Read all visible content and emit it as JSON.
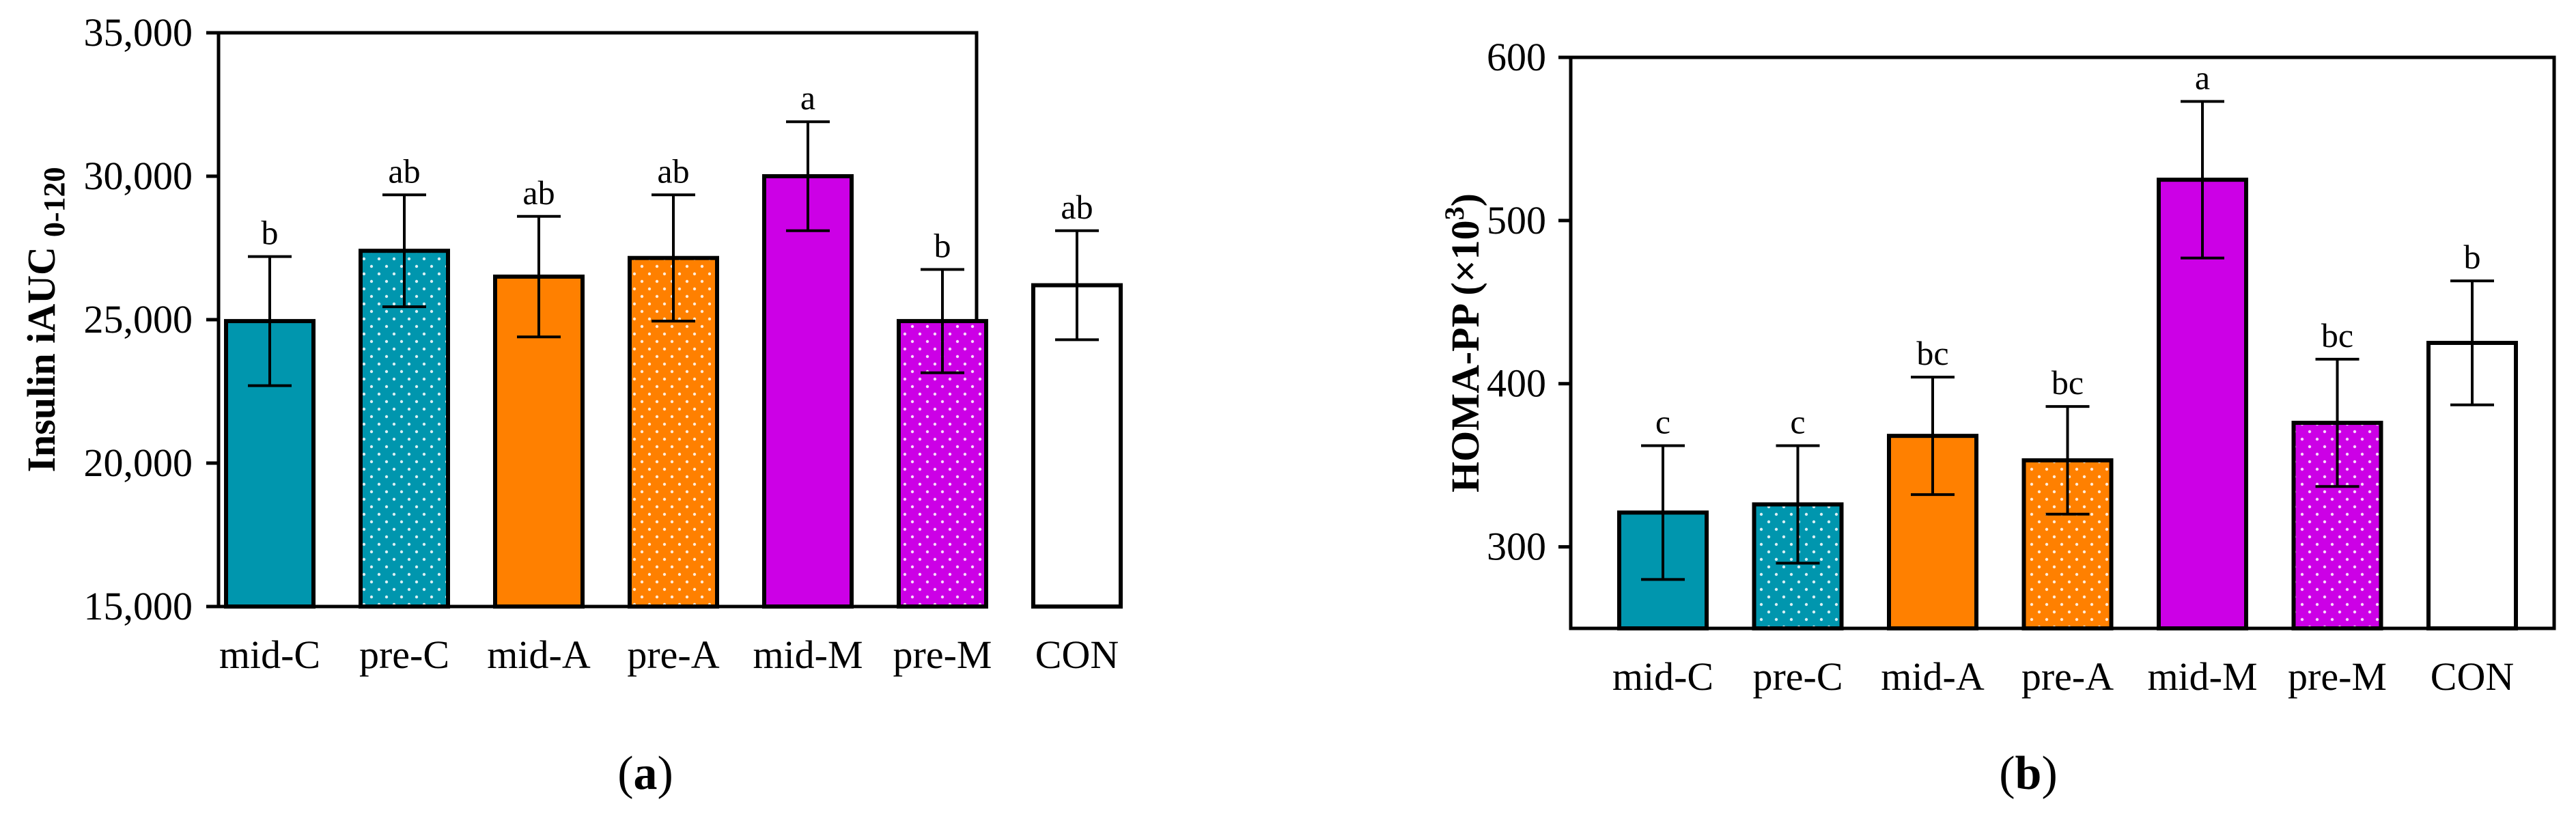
{
  "chart_data": [
    {
      "type": "bar",
      "panel_label": "a",
      "title": "",
      "xlabel": "",
      "ylabel_main": "Insulin iAUC",
      "ylabel_sub": "0-120",
      "ylim": [
        15000,
        35000
      ],
      "yticks": [
        15000,
        20000,
        25000,
        30000,
        35000
      ],
      "ytick_labels": [
        "15,000",
        "20,000",
        "25,000",
        "30,000",
        "35,000"
      ],
      "categories": [
        "mid-C",
        "pre-C",
        "mid-A",
        "pre-A",
        "mid-M",
        "pre-M",
        "CON"
      ],
      "values": [
        24950,
        27400,
        26500,
        27150,
        30000,
        24950,
        26200
      ],
      "errors": [
        2250,
        1950,
        2100,
        2200,
        1900,
        1800,
        1900
      ],
      "letters": [
        "b",
        "ab",
        "ab",
        "ab",
        "a",
        "b",
        "ab"
      ]
    },
    {
      "type": "bar",
      "panel_label": "b",
      "title": "",
      "xlabel": "",
      "ylabel_main": "HOMA-PP (×10",
      "ylabel_sup": "3",
      "ylabel_end": ")",
      "ylim": [
        250,
        600
      ],
      "yticks": [
        300,
        400,
        500,
        600
      ],
      "ytick_labels": [
        "300",
        "400",
        "500",
        "600"
      ],
      "categories": [
        "mid-C",
        "pre-C",
        "mid-A",
        "pre-A",
        "mid-M",
        "pre-M",
        "CON"
      ],
      "values": [
        321,
        326,
        368,
        353,
        525,
        376,
        425
      ],
      "errors": [
        41,
        36,
        36,
        33,
        48,
        39,
        38
      ],
      "letters": [
        "c",
        "c",
        "bc",
        "bc",
        "a",
        "bc",
        "b"
      ]
    }
  ],
  "colors": {
    "mid-C": "#0096AE",
    "pre-C": "#0096AE",
    "mid-A": "#FF8000",
    "pre-A": "#FF8000",
    "mid-M": "#CC00E6",
    "pre-M": "#CC00E6",
    "CON": "#FFFFFF"
  },
  "patterns": [
    "solid",
    "dots",
    "solid",
    "dots",
    "solid",
    "dots",
    "solid"
  ]
}
